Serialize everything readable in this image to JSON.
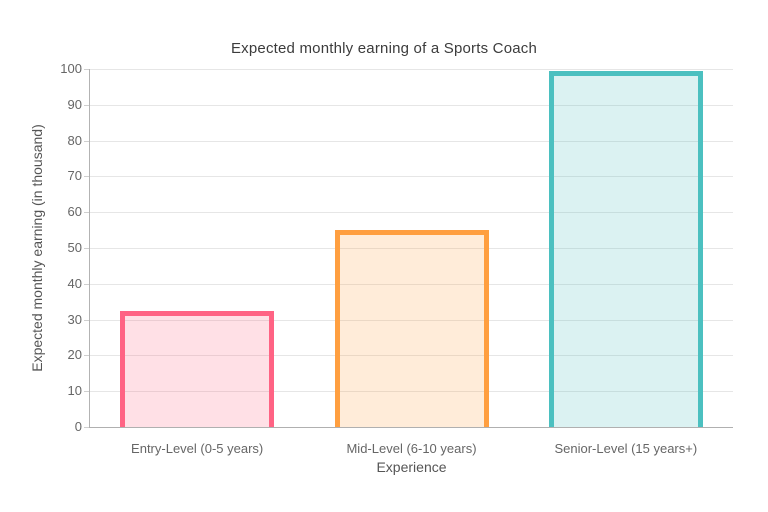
{
  "chart_data": {
    "type": "bar",
    "title": "Expected monthly earning of a Sports Coach",
    "xlabel": "Experience",
    "ylabel": "Expected monthly earning (in thousand)",
    "categories": [
      "Entry-Level (0-5 years)",
      "Mid-Level (6-10 years)",
      "Senior-Level (15 years+)"
    ],
    "values": [
      32.5,
      55,
      99.5
    ],
    "ylim": [
      0,
      100
    ],
    "yticks": [
      0,
      10,
      20,
      30,
      40,
      50,
      60,
      70,
      80,
      90,
      100
    ],
    "grid": true,
    "legend": false,
    "bar_colors": [
      {
        "border": "#FF6384",
        "fill": "rgba(255,99,132,0.2)"
      },
      {
        "border": "#FF9F40",
        "fill": "rgba(255,159,64,0.2)"
      },
      {
        "border": "#4BC0C0",
        "fill": "rgba(75,192,192,0.2)"
      }
    ]
  }
}
